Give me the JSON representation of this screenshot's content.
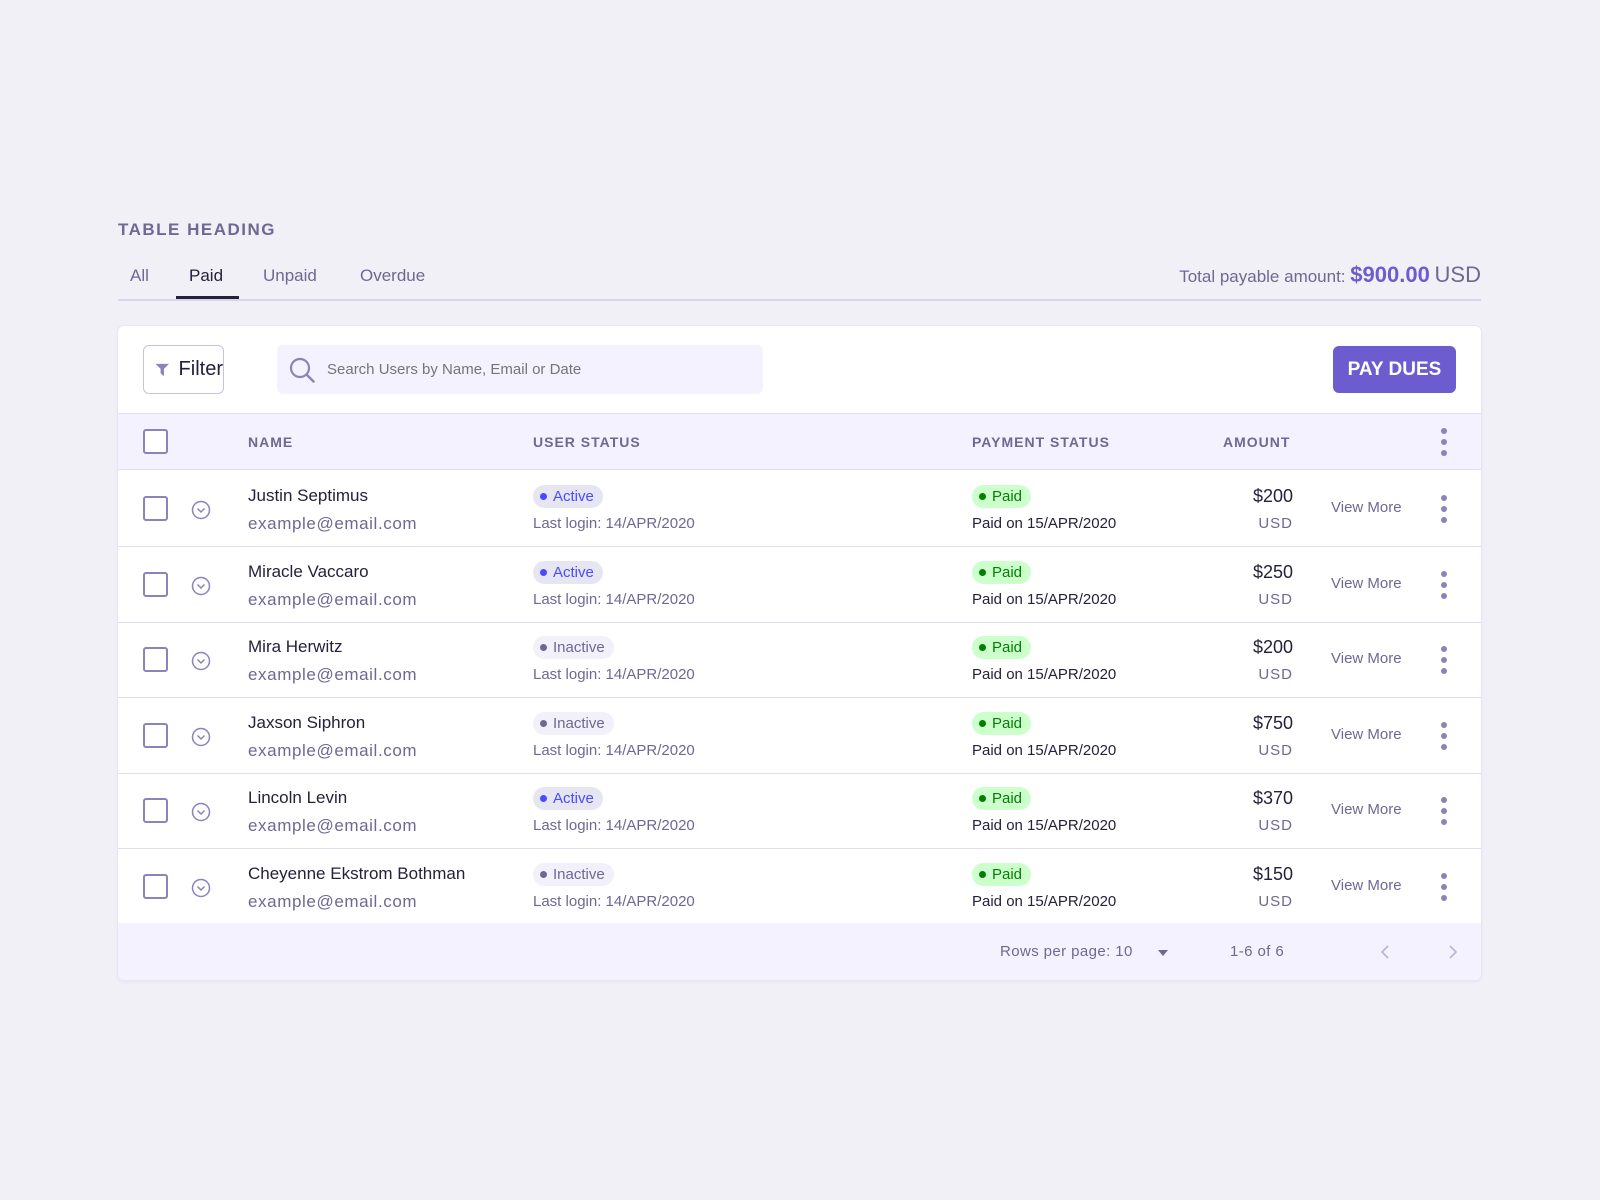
{
  "heading": "TABLE HEADING",
  "tabs": [
    {
      "label": "All"
    },
    {
      "label": "Paid"
    },
    {
      "label": "Unpaid"
    },
    {
      "label": "Overdue"
    }
  ],
  "active_tab": "Paid",
  "total": {
    "label": "Total payable amount:",
    "amount": "$900.00",
    "currency": "USD"
  },
  "toolbar": {
    "filter_label": "Filter",
    "search_placeholder": "Search Users by Name, Email or Date",
    "pay_label": "PAY DUES"
  },
  "columns": {
    "name": "NAME",
    "user_status": "USER STATUS",
    "payment_status": "PAYMENT STATUS",
    "amount": "AMOUNT"
  },
  "colors": {
    "accent": "#6d5bd0",
    "active": "#4a4aff",
    "inactive": "#6e6893",
    "paid": "#007f00",
    "paid_bg": "#cdffcd"
  },
  "rows": [
    {
      "name": "Justin Septimus",
      "email": "example@email.com",
      "status": "Active",
      "last_login": "Last login: 14/APR/2020",
      "payment": "Paid",
      "paid_on": "Paid on 15/APR/2020",
      "amount": "$200",
      "currency": "USD",
      "action": "View More"
    },
    {
      "name": "Miracle Vaccaro",
      "email": "example@email.com",
      "status": "Active",
      "last_login": "Last login: 14/APR/2020",
      "payment": "Paid",
      "paid_on": "Paid on 15/APR/2020",
      "amount": "$250",
      "currency": "USD",
      "action": "View More"
    },
    {
      "name": "Mira Herwitz",
      "email": "example@email.com",
      "status": "Inactive",
      "last_login": "Last login: 14/APR/2020",
      "payment": "Paid",
      "paid_on": "Paid on 15/APR/2020",
      "amount": "$200",
      "currency": "USD",
      "action": "View More"
    },
    {
      "name": "Jaxson Siphron",
      "email": "example@email.com",
      "status": "Inactive",
      "last_login": "Last login: 14/APR/2020",
      "payment": "Paid",
      "paid_on": "Paid on 15/APR/2020",
      "amount": "$750",
      "currency": "USD",
      "action": "View More"
    },
    {
      "name": "Lincoln Levin",
      "email": "example@email.com",
      "status": "Active",
      "last_login": "Last login: 14/APR/2020",
      "payment": "Paid",
      "paid_on": "Paid on 15/APR/2020",
      "amount": "$370",
      "currency": "USD",
      "action": "View More"
    },
    {
      "name": "Cheyenne Ekstrom Bothman",
      "email": "example@email.com",
      "status": "Inactive",
      "last_login": "Last login: 14/APR/2020",
      "payment": "Paid",
      "paid_on": "Paid on 15/APR/2020",
      "amount": "$150",
      "currency": "USD",
      "action": "View More"
    }
  ],
  "footer": {
    "rows_per_page": "Rows per page: 10",
    "range": "1-6 of 6"
  }
}
